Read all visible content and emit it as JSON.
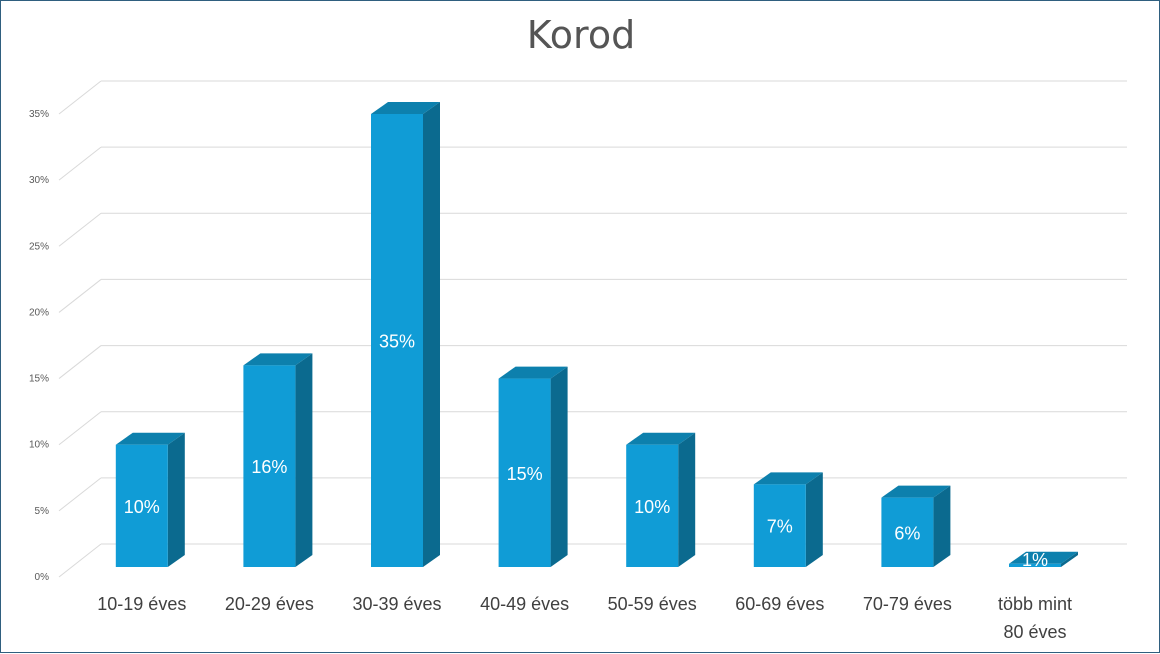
{
  "chart_data": {
    "type": "bar",
    "title": "Korod",
    "categories": [
      "10-19 éves",
      "20-29 éves",
      "30-39 éves",
      "40-49 éves",
      "50-59 éves",
      "60-69 éves",
      "70-79 éves",
      "több mint 80 éves"
    ],
    "category_lines": [
      [
        "10-19 éves"
      ],
      [
        "20-29 éves"
      ],
      [
        "30-39 éves"
      ],
      [
        "40-49 éves"
      ],
      [
        "50-59 éves"
      ],
      [
        "60-69 éves"
      ],
      [
        "70-79 éves"
      ],
      [
        "több mint",
        "80 éves"
      ]
    ],
    "values": [
      10,
      16,
      35,
      15,
      10,
      7,
      6,
      1
    ],
    "data_labels": [
      "10%",
      "16%",
      "35%",
      "15%",
      "10%",
      "7%",
      "6%",
      "1%"
    ],
    "yticks": [
      0,
      5,
      10,
      15,
      20,
      25,
      30,
      35
    ],
    "ytick_labels": [
      "0%",
      "5%",
      "10%",
      "15%",
      "20%",
      "25%",
      "30%",
      "35%"
    ],
    "ylim": [
      0,
      35
    ],
    "grid": true,
    "style": "3d-column",
    "colors": {
      "bar_front": "#109cd6",
      "bar_side": "#0b6a8f",
      "bar_top": "#0d80ad",
      "grid": "#d9d9d9"
    }
  }
}
